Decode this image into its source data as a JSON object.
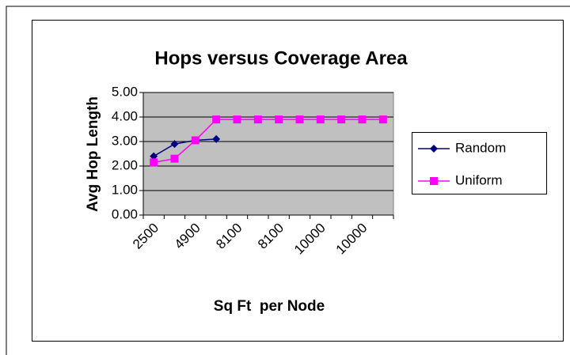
{
  "chart_data": {
    "type": "line",
    "title": "Hops versus Coverage Area",
    "x_label": "Sq Ft  per Node",
    "y_label": "Avg Hop Length",
    "categories": [
      "2500",
      null,
      "4900",
      null,
      "8100",
      null,
      "8100",
      null,
      "10000",
      null,
      "10000",
      null
    ],
    "series": [
      {
        "name": "Random",
        "color": "#000080",
        "marker": "diamond",
        "values": [
          2.4,
          2.9,
          3.05,
          3.1,
          null,
          null,
          null,
          null,
          null,
          null,
          null,
          null
        ]
      },
      {
        "name": "Uniform",
        "color": "#ff00ff",
        "marker": "square",
        "values": [
          2.15,
          2.3,
          3.05,
          3.9,
          3.9,
          3.9,
          3.9,
          3.9,
          3.9,
          3.9,
          3.9,
          3.9
        ]
      }
    ],
    "ylim": [
      0,
      5
    ],
    "yticks": [
      {
        "value": 0,
        "label": "0.00"
      },
      {
        "value": 1,
        "label": "1.00"
      },
      {
        "value": 2,
        "label": "2.00"
      },
      {
        "value": 3,
        "label": "3.00"
      },
      {
        "value": 4,
        "label": "4.00"
      },
      {
        "value": 5,
        "label": "5.00"
      }
    ],
    "grid": true,
    "plot_background": "#c0c0c0",
    "legend": "right"
  }
}
